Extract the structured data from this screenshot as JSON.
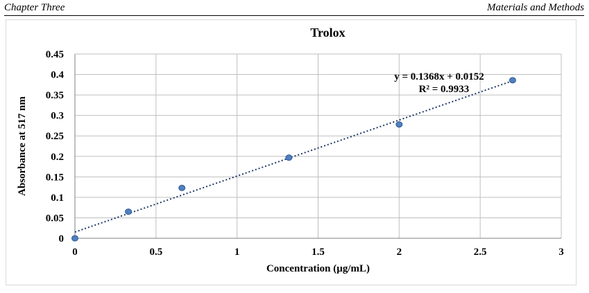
{
  "header": {
    "left": "Chapter Three",
    "right": "Materials and Methods"
  },
  "chart_data": {
    "type": "scatter",
    "title": "Trolox",
    "xlabel": "Concentration (µg/mL)",
    "ylabel": "Absorbance at 517 nm",
    "xlim": [
      0,
      3
    ],
    "ylim": [
      0,
      0.45
    ],
    "xticks": [
      0,
      0.5,
      1,
      1.5,
      2,
      2.5,
      3
    ],
    "xtick_labels": [
      "0",
      "0.5",
      "1",
      "1.5",
      "2",
      "2.5",
      "3"
    ],
    "yticks": [
      0,
      0.05,
      0.1,
      0.15,
      0.2,
      0.25,
      0.3,
      0.35,
      0.4,
      0.45
    ],
    "ytick_labels": [
      "0",
      "0.05",
      "0.1",
      "0.15",
      "0.2",
      "0.25",
      "0.3",
      "0.35",
      "0.4",
      "0.45"
    ],
    "grid": true,
    "points": [
      {
        "x": 0,
        "y": 0
      },
      {
        "x": 0.33,
        "y": 0.065
      },
      {
        "x": 0.66,
        "y": 0.123
      },
      {
        "x": 1.32,
        "y": 0.197
      },
      {
        "x": 2.0,
        "y": 0.278
      },
      {
        "x": 2.7,
        "y": 0.386
      }
    ],
    "trendline": {
      "slope": 0.1368,
      "intercept": 0.0152,
      "x_range": [
        0,
        2.7
      ]
    },
    "equation_text": "y = 0.1368x + 0.0152",
    "r2_text": "R² = 0.9933",
    "colors": {
      "marker_fill": "#4f81bd",
      "marker_stroke": "#2f5597",
      "trendline": "#1f3864",
      "grid": "#bfbfbf"
    }
  }
}
